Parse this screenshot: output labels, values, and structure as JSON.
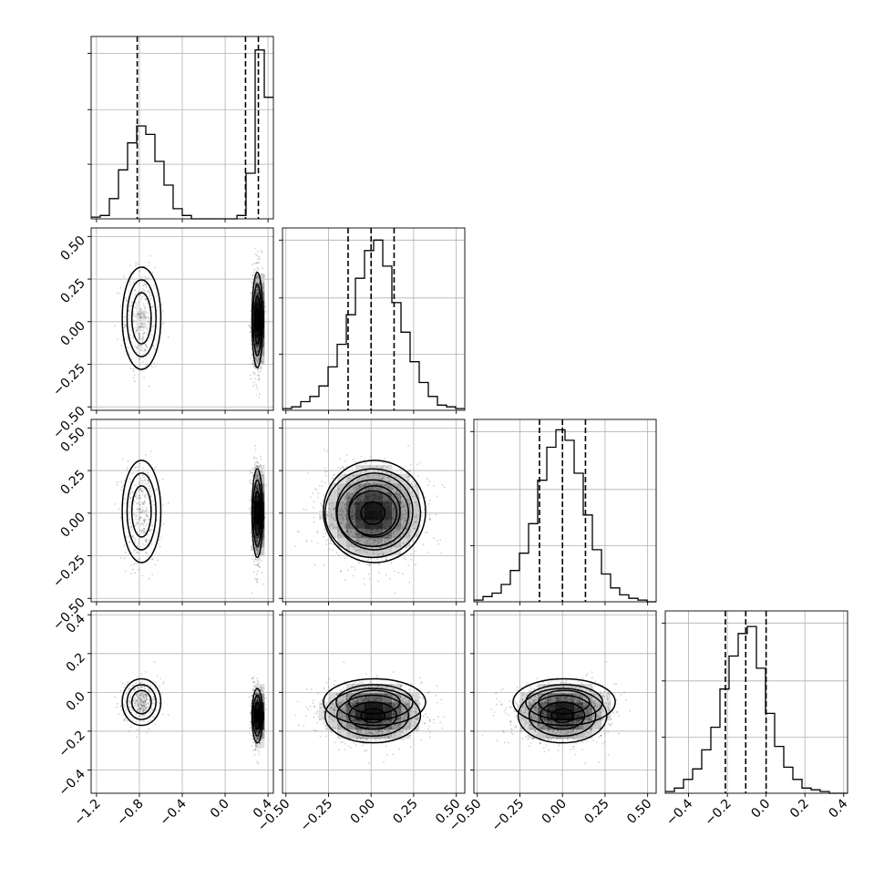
{
  "chart_data": {
    "type": "corner",
    "grid": true,
    "n_params": 4,
    "axes": [
      {
        "lim": [
          -1.25,
          0.45
        ],
        "ticks": [
          -1.2,
          -0.8,
          -0.4,
          0.0,
          0.4
        ],
        "tick_labels": [
          "−1.2",
          "−0.8",
          "−0.4",
          "0.0",
          "0.4"
        ]
      },
      {
        "lim": [
          -0.52,
          0.55
        ],
        "ticks": [
          -0.5,
          -0.25,
          0.0,
          0.25,
          0.5
        ],
        "tick_labels": [
          "−0.50",
          "−0.25",
          "0.00",
          "0.25",
          "0.50"
        ]
      },
      {
        "lim": [
          -0.52,
          0.55
        ],
        "ticks": [
          -0.5,
          -0.25,
          0.0,
          0.25,
          0.5
        ],
        "tick_labels": [
          "−0.50",
          "−0.25",
          "0.00",
          "0.25",
          "0.50"
        ]
      },
      {
        "lim": [
          -0.52,
          0.42
        ],
        "ticks": [
          -0.4,
          -0.2,
          0.0,
          0.2,
          0.4
        ],
        "tick_labels": [
          "−0.4",
          "−0.2",
          "0.0",
          "0.2",
          "0.4"
        ]
      }
    ],
    "marginals": [
      {
        "bin_edges": [
          -1.25,
          -1.165,
          -1.08,
          -0.995,
          -0.91,
          -0.825,
          -0.74,
          -0.655,
          -0.57,
          -0.485,
          -0.4,
          -0.315,
          -0.23,
          -0.145,
          -0.06,
          0.025,
          0.11,
          0.195,
          0.28,
          0.365,
          0.45
        ],
        "heights": [
          0.01,
          0.02,
          0.12,
          0.29,
          0.45,
          0.55,
          0.5,
          0.34,
          0.2,
          0.06,
          0.02,
          0.0,
          0.0,
          0.0,
          0.0,
          0.0,
          0.02,
          0.27,
          1.0,
          0.72
        ],
        "quantiles": [
          -0.82,
          0.19,
          0.31
        ],
        "ymax": 1.08
      },
      {
        "bin_edges": [
          -0.52,
          -0.4665,
          -0.413,
          -0.3595,
          -0.306,
          -0.2525,
          -0.199,
          -0.1455,
          -0.092,
          -0.0385,
          0.015,
          0.0685,
          0.122,
          0.1755,
          0.229,
          0.2825,
          0.336,
          0.3895,
          0.443,
          0.4965,
          0.55
        ],
        "heights": [
          0.01,
          0.02,
          0.05,
          0.08,
          0.14,
          0.25,
          0.38,
          0.55,
          0.76,
          0.92,
          0.98,
          0.83,
          0.62,
          0.45,
          0.28,
          0.16,
          0.08,
          0.03,
          0.02,
          0.01
        ],
        "quantiles": [
          -0.135,
          0.0,
          0.135
        ],
        "ymax": 1.05
      },
      {
        "bin_edges": [
          -0.52,
          -0.4665,
          -0.413,
          -0.3595,
          -0.306,
          -0.2525,
          -0.199,
          -0.1455,
          -0.092,
          -0.0385,
          0.015,
          0.0685,
          0.122,
          0.1755,
          0.229,
          0.2825,
          0.336,
          0.3895,
          0.443,
          0.4965,
          0.55
        ],
        "heights": [
          0.01,
          0.03,
          0.05,
          0.1,
          0.18,
          0.28,
          0.45,
          0.7,
          0.89,
          0.99,
          0.93,
          0.74,
          0.5,
          0.3,
          0.16,
          0.08,
          0.04,
          0.02,
          0.01,
          0.0
        ],
        "quantiles": [
          -0.135,
          0.0,
          0.135
        ],
        "ymax": 1.05
      },
      {
        "bin_edges": [
          -0.52,
          -0.473,
          -0.426,
          -0.379,
          -0.332,
          -0.285,
          -0.238,
          -0.191,
          -0.144,
          -0.097,
          -0.05,
          -0.003,
          0.044,
          0.091,
          0.138,
          0.185,
          0.232,
          0.279,
          0.326,
          0.373,
          0.42
        ],
        "heights": [
          0.01,
          0.03,
          0.08,
          0.14,
          0.25,
          0.38,
          0.6,
          0.79,
          0.92,
          0.96,
          0.72,
          0.46,
          0.27,
          0.15,
          0.08,
          0.03,
          0.02,
          0.01,
          0.0,
          0.0
        ],
        "quantiles": [
          -0.21,
          -0.105,
          0.0
        ],
        "ymax": 1.05
      }
    ],
    "clusters": [
      {
        "name": "",
        "weight": 0.25,
        "mean": [
          -0.78,
          0.02,
          0.01,
          -0.05
        ],
        "sd": [
          0.09,
          0.15,
          0.15,
          0.06
        ]
      },
      {
        "name": "",
        "weight": 0.75,
        "mean": [
          0.3,
          0.01,
          0.0,
          -0.12
        ],
        "sd": [
          0.025,
          0.14,
          0.13,
          0.07
        ]
      }
    ]
  }
}
